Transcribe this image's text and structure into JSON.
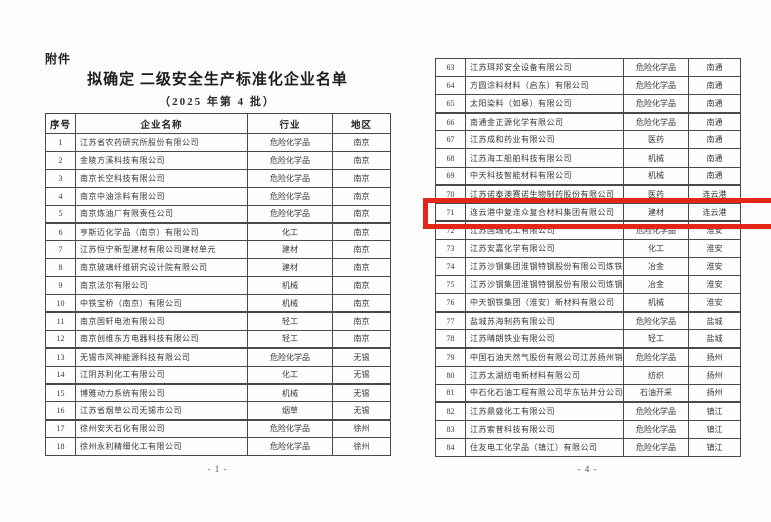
{
  "attachment_label": "附件",
  "title": "拟确定 二级安全生产标准化企业名单",
  "subtitle": "（2025 年第 4 批）",
  "columns": [
    "序号",
    "企业名称",
    "行业",
    "地区"
  ],
  "left_page": {
    "page_number": "- 1 -",
    "thick_line_after": [
      "5",
      "10",
      "12",
      "14",
      "16"
    ],
    "rows": [
      {
        "no": "1",
        "name": "江苏省农药研究所股份有限公司",
        "industry": "危险化学品",
        "region": "南京"
      },
      {
        "no": "2",
        "name": "金陵方溪科技有限公司",
        "industry": "危险化学品",
        "region": "南京"
      },
      {
        "no": "3",
        "name": "南京长空科技有限公司",
        "industry": "危险化学品",
        "region": "南京"
      },
      {
        "no": "4",
        "name": "南京中油涂料有限公司",
        "industry": "危险化学品",
        "region": "南京"
      },
      {
        "no": "5",
        "name": "南京炼油厂有限责任公司",
        "industry": "危险化学品",
        "region": "南京"
      },
      {
        "no": "6",
        "name": "亨斯迈化学品（南京）有限公司",
        "industry": "化工",
        "region": "南京"
      },
      {
        "no": "7",
        "name": "江苏恒宁新型建材有限公司建材单元",
        "industry": "建材",
        "region": "南京"
      },
      {
        "no": "8",
        "name": "南京玻璃纤维研究设计院有限公司",
        "industry": "建材",
        "region": "南京"
      },
      {
        "no": "9",
        "name": "南京法尔有限公司",
        "industry": "机械",
        "region": "南京"
      },
      {
        "no": "10",
        "name": "中铁宝桥（南京）有限公司",
        "industry": "机械",
        "region": "南京"
      },
      {
        "no": "11",
        "name": "南京国轩电池有限公司",
        "industry": "轻工",
        "region": "南京"
      },
      {
        "no": "12",
        "name": "南京创维东方电器科技有限公司",
        "industry": "轻工",
        "region": "南京"
      },
      {
        "no": "13",
        "name": "无锡市风神能源科技有限公司",
        "industry": "危险化学品",
        "region": "无锡"
      },
      {
        "no": "14",
        "name": "江阴苏利化工有限公司",
        "industry": "化工",
        "region": "无锡"
      },
      {
        "no": "15",
        "name": "博雅动力系统有限公司",
        "industry": "机械",
        "region": "无锡"
      },
      {
        "no": "16",
        "name": "江苏省烟草公司无锡市公司",
        "industry": "烟草",
        "region": "无锡"
      },
      {
        "no": "17",
        "name": "徐州安天石化有限公司",
        "industry": "危险化学品",
        "region": "徐州"
      },
      {
        "no": "18",
        "name": "徐州永利精细化工有限公司",
        "industry": "危险化学品",
        "region": "徐州"
      }
    ]
  },
  "right_page": {
    "page_number": "- 4 -",
    "thick_line_after": [
      "65",
      "69",
      "71",
      "76",
      "78",
      "81"
    ],
    "rows": [
      {
        "no": "63",
        "name": "江苏珥邦安全设备有限公司",
        "industry": "危险化学品",
        "region": "南通"
      },
      {
        "no": "64",
        "name": "方圆涂料材料（启东）有限公司",
        "industry": "危险化学品",
        "region": "南通"
      },
      {
        "no": "65",
        "name": "太阳染料（如皋）有限公司",
        "industry": "危险化学品",
        "region": "南通"
      },
      {
        "no": "66",
        "name": "南通金正源化学有限公司",
        "industry": "危险化学品",
        "region": "南通"
      },
      {
        "no": "67",
        "name": "江苏成和药业有限公司",
        "industry": "医药",
        "region": "南通"
      },
      {
        "no": "68",
        "name": "江苏海工船舶科技有限公司",
        "industry": "机械",
        "region": "南通"
      },
      {
        "no": "69",
        "name": "中天科技智能材料有限公司",
        "industry": "机械",
        "region": "南通"
      },
      {
        "no": "70",
        "name": "江苏诺泰澳赛诺生物制药股份有限公司",
        "industry": "医药",
        "region": "连云港"
      },
      {
        "no": "71",
        "name": "连云港中复连众复合材料集团有限公司",
        "industry": "建材",
        "region": "连云港"
      },
      {
        "no": "72",
        "name": "江苏国瑞化工有限公司",
        "industry": "危险化学品",
        "region": "淮安"
      },
      {
        "no": "73",
        "name": "江苏安嘉化学有限公司",
        "industry": "化工",
        "region": "淮安"
      },
      {
        "no": "74",
        "name": "江苏沙钢集团淮钢特钢股份有限公司炼铁车间",
        "industry": "冶金",
        "region": "淮安"
      },
      {
        "no": "75",
        "name": "江苏沙钢集团淮钢特钢股份有限公司炼钢车间",
        "industry": "冶金",
        "region": "淮安"
      },
      {
        "no": "76",
        "name": "中天钢铁集团（淮安）新材料有限公司",
        "industry": "机械",
        "region": "淮安"
      },
      {
        "no": "77",
        "name": "盐城苏海制药有限公司",
        "industry": "危险化学品",
        "region": "盐城"
      },
      {
        "no": "78",
        "name": "江苏晴朗铁业有限公司",
        "industry": "轻工",
        "region": "盐城"
      },
      {
        "no": "79",
        "name": "中国石油天然气股份有限公司江苏扬州销售分公司",
        "industry": "危险化学品",
        "region": "扬州"
      },
      {
        "no": "80",
        "name": "江苏太湖纺电新材料有限公司",
        "industry": "纺织",
        "region": "扬州"
      },
      {
        "no": "81",
        "name": "中石化石油工程有限公司华东钻井分公司",
        "industry": "石油开采",
        "region": "扬州"
      },
      {
        "no": "82",
        "name": "江苏鼎盛化工有限公司",
        "industry": "危险化学品",
        "region": "镇江"
      },
      {
        "no": "83",
        "name": "江苏索普科技有限公司",
        "industry": "危险化学品",
        "region": "镇江"
      },
      {
        "no": "84",
        "name": "住友电工化学品（镇江）有限公司",
        "industry": "危险化学品",
        "region": "镇江"
      }
    ]
  },
  "highlight": {
    "row_no": "71",
    "color": "#e32617"
  }
}
